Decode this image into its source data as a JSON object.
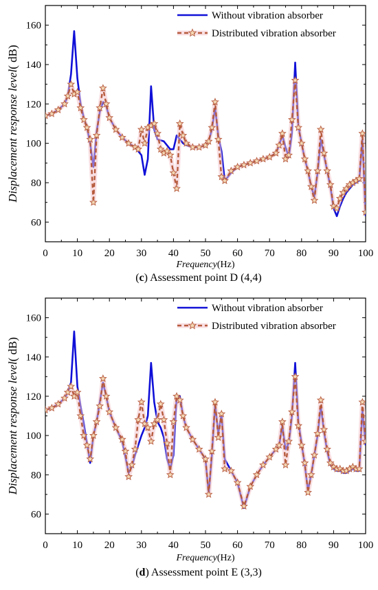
{
  "colors": {
    "without": "#1010d8",
    "distributed": "#b65a3c",
    "star_fill": "#f4d9b6",
    "halo": "#f2c4cc"
  },
  "chart_data": [
    {
      "type": "line",
      "caption_letter": "c",
      "caption_text": " Assessment point D (4,4)",
      "xlabel_italic": "Frequency",
      "xlabel_unit": "(Hz)",
      "ylabel_italic": "Displacement  response level",
      "ylabel_unit": "( dB)",
      "xlim": [
        0,
        100
      ],
      "ylim": [
        50,
        170
      ],
      "xticks": [
        0,
        10,
        20,
        30,
        40,
        50,
        60,
        70,
        80,
        90,
        100
      ],
      "yticks": [
        60,
        80,
        100,
        120,
        140,
        160
      ],
      "legend_position": "top-right",
      "series": [
        {
          "name": "Without vibration absorber",
          "x": [
            0,
            2,
            4,
            6,
            7,
            8,
            9,
            10,
            11,
            12,
            13,
            14,
            15,
            16,
            17,
            18,
            19,
            20,
            22,
            24,
            26,
            28,
            29,
            30,
            31,
            32,
            33,
            34,
            35,
            37,
            39,
            40,
            41,
            42,
            43,
            44,
            46,
            48,
            50,
            51,
            52,
            53,
            54,
            55,
            56,
            58,
            60,
            62,
            64,
            66,
            68,
            70,
            72,
            73,
            74,
            75,
            76,
            77,
            78,
            79,
            80,
            81,
            82,
            83,
            84,
            85,
            86,
            87,
            88,
            89,
            90,
            91,
            92,
            93,
            94,
            95,
            96,
            97,
            98,
            99,
            100
          ],
          "y": [
            114,
            115,
            117,
            120,
            124,
            135,
            157,
            133,
            120,
            113,
            108,
            100,
            88,
            106,
            116,
            121,
            119,
            113,
            107,
            103,
            100,
            98,
            96,
            94,
            84,
            92,
            129,
            107,
            102,
            101,
            97,
            97,
            104,
            102,
            100,
            99,
            98,
            98,
            99,
            101,
            107,
            118,
            104,
            96,
            81,
            85,
            88,
            89,
            90,
            91,
            92,
            93,
            95,
            99,
            104,
            98,
            93,
            105,
            141,
            109,
            100,
            92,
            86,
            78,
            73,
            85,
            102,
            94,
            86,
            78,
            67,
            63,
            68,
            72,
            75,
            77,
            79,
            80,
            81,
            102,
            63
          ]
        },
        {
          "name": "Distributed vibration absorber",
          "x": [
            0,
            2,
            4,
            6,
            7,
            8,
            9,
            10,
            11,
            12,
            13,
            14,
            15,
            16,
            17,
            18,
            19,
            20,
            22,
            24,
            26,
            28,
            29,
            30,
            31,
            32,
            33,
            34,
            35,
            36,
            37,
            38,
            39,
            40,
            41,
            42,
            43,
            44,
            46,
            48,
            50,
            51,
            52,
            53,
            54,
            55,
            56,
            58,
            60,
            62,
            64,
            66,
            68,
            70,
            72,
            73,
            74,
            75,
            76,
            77,
            78,
            79,
            80,
            81,
            82,
            83,
            84,
            85,
            86,
            87,
            88,
            89,
            90,
            91,
            92,
            93,
            94,
            95,
            96,
            97,
            98,
            99,
            100
          ],
          "y": [
            114,
            115,
            117,
            120,
            124,
            130,
            125,
            126,
            118,
            112,
            108,
            102,
            70,
            104,
            118,
            128,
            120,
            113,
            107,
            103,
            100,
            98,
            97,
            107,
            100,
            108,
            109,
            110,
            105,
            97,
            95,
            96,
            94,
            85,
            77,
            110,
            104,
            100,
            98,
            98,
            99,
            101,
            108,
            121,
            102,
            83,
            81,
            86,
            88,
            89,
            90,
            91,
            92,
            93,
            95,
            99,
            105,
            92,
            94,
            112,
            132,
            108,
            100,
            92,
            86,
            78,
            71,
            86,
            107,
            95,
            86,
            79,
            68,
            67,
            72,
            75,
            77,
            79,
            80,
            81,
            82,
            105,
            65
          ]
        }
      ]
    },
    {
      "type": "line",
      "caption_letter": "d",
      "caption_text": " Assessment point E (3,3)",
      "xlabel_italic": "Frequency",
      "xlabel_unit": "(Hz)",
      "ylabel_italic": "Displacement  response level",
      "ylabel_unit": "( dB)",
      "xlim": [
        0,
        100
      ],
      "ylim": [
        50,
        170
      ],
      "xticks": [
        0,
        10,
        20,
        30,
        40,
        50,
        60,
        70,
        80,
        90,
        100
      ],
      "yticks": [
        60,
        80,
        100,
        120,
        140,
        160
      ],
      "legend_position": "top-right",
      "series": [
        {
          "name": "Without vibration absorber",
          "x": [
            0,
            2,
            4,
            6,
            7,
            8,
            9,
            10,
            11,
            12,
            13,
            14,
            15,
            16,
            17,
            18,
            19,
            20,
            22,
            24,
            25,
            26,
            27,
            28,
            29,
            30,
            31,
            32,
            33,
            34,
            35,
            36,
            37,
            38,
            39,
            40,
            41,
            42,
            43,
            44,
            46,
            48,
            50,
            51,
            52,
            53,
            54,
            55,
            56,
            58,
            60,
            62,
            64,
            66,
            68,
            70,
            72,
            73,
            74,
            75,
            76,
            77,
            78,
            79,
            80,
            81,
            82,
            83,
            84,
            85,
            86,
            87,
            88,
            89,
            90,
            91,
            92,
            93,
            94,
            95,
            96,
            97,
            98,
            99,
            100
          ],
          "y": [
            113,
            114,
            116,
            119,
            122,
            127,
            153,
            125,
            115,
            106,
            96,
            86,
            100,
            107,
            117,
            127,
            120,
            112,
            104,
            97,
            89,
            81,
            84,
            90,
            95,
            100,
            104,
            110,
            137,
            117,
            107,
            104,
            99,
            88,
            83,
            90,
            120,
            120,
            110,
            104,
            98,
            93,
            88,
            70,
            90,
            116,
            101,
            111,
            88,
            82,
            76,
            63,
            74,
            80,
            85,
            89,
            93,
            95,
            105,
            93,
            96,
            110,
            137,
            107,
            96,
            85,
            72,
            80,
            90,
            100,
            115,
            102,
            92,
            85,
            83,
            82,
            82,
            81,
            81,
            82,
            83,
            82,
            82,
            113,
            95
          ]
        },
        {
          "name": "Distributed vibration absorber",
          "x": [
            0,
            2,
            4,
            6,
            7,
            8,
            9,
            10,
            11,
            12,
            13,
            14,
            15,
            16,
            17,
            18,
            19,
            20,
            22,
            24,
            25,
            26,
            27,
            28,
            29,
            30,
            31,
            32,
            33,
            34,
            35,
            36,
            37,
            38,
            39,
            40,
            41,
            42,
            43,
            44,
            46,
            48,
            50,
            51,
            52,
            53,
            54,
            55,
            56,
            58,
            60,
            62,
            64,
            66,
            68,
            70,
            72,
            73,
            74,
            75,
            76,
            77,
            78,
            79,
            80,
            81,
            82,
            83,
            84,
            85,
            86,
            87,
            88,
            89,
            90,
            91,
            92,
            93,
            94,
            95,
            96,
            97,
            98,
            99,
            100
          ],
          "y": [
            113,
            114,
            116,
            119,
            122,
            125,
            120,
            122,
            110,
            100,
            95,
            88,
            100,
            107,
            115,
            129,
            120,
            112,
            104,
            98,
            92,
            79,
            85,
            93,
            108,
            117,
            106,
            104,
            97,
            106,
            108,
            116,
            108,
            96,
            80,
            107,
            120,
            118,
            110,
            104,
            98,
            93,
            88,
            70,
            92,
            117,
            99,
            111,
            83,
            82,
            76,
            64,
            74,
            80,
            85,
            89,
            93,
            95,
            107,
            85,
            97,
            112,
            130,
            105,
            95,
            86,
            71,
            80,
            90,
            101,
            118,
            103,
            93,
            86,
            84,
            83,
            83,
            82,
            82,
            83,
            84,
            83,
            83,
            117,
            97
          ]
        }
      ]
    }
  ]
}
